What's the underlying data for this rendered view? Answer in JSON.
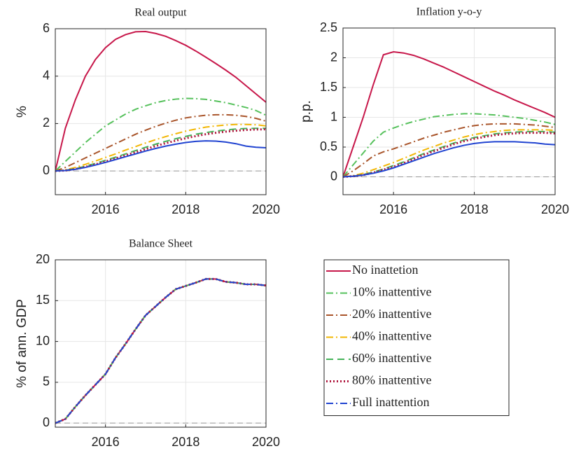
{
  "chart_data": [
    {
      "type": "line",
      "title": "Real output",
      "ylabel": "%",
      "xlim": [
        2014.75,
        2020
      ],
      "xticks": [
        2016,
        2018,
        2020
      ],
      "ylim": [
        -1,
        6
      ],
      "yticks": [
        0,
        2,
        4,
        6
      ],
      "grid": true,
      "hline": 0,
      "x": [
        2014.75,
        2015,
        2015.25,
        2015.5,
        2015.75,
        2016,
        2016.25,
        2016.5,
        2016.75,
        2017,
        2017.25,
        2017.5,
        2017.75,
        2018,
        2018.25,
        2018.5,
        2018.75,
        2019,
        2019.25,
        2019.5,
        2019.75,
        2020
      ],
      "series": [
        {
          "name": "No inattetion",
          "color": "#c7174a",
          "dash": "solid",
          "values": [
            0,
            1.8,
            3.0,
            4.0,
            4.7,
            5.2,
            5.55,
            5.75,
            5.87,
            5.88,
            5.8,
            5.68,
            5.5,
            5.3,
            5.06,
            4.8,
            4.53,
            4.25,
            3.95,
            3.6,
            3.25,
            2.9
          ]
        },
        {
          "name": "10% inattentive",
          "color": "#56c15c",
          "dash": "dashdot",
          "values": [
            0,
            0.4,
            0.8,
            1.2,
            1.55,
            1.9,
            2.15,
            2.4,
            2.6,
            2.75,
            2.88,
            2.97,
            3.03,
            3.06,
            3.05,
            3.02,
            2.95,
            2.88,
            2.78,
            2.68,
            2.55,
            2.35
          ]
        },
        {
          "name": "20% inattentive",
          "color": "#a9552b",
          "dash": "dashdot",
          "values": [
            0,
            0.15,
            0.35,
            0.55,
            0.75,
            0.95,
            1.15,
            1.35,
            1.55,
            1.72,
            1.88,
            2.02,
            2.14,
            2.24,
            2.3,
            2.35,
            2.37,
            2.37,
            2.35,
            2.3,
            2.22,
            2.1
          ]
        },
        {
          "name": "40% inattentive",
          "color": "#f2b705",
          "dash": "dashdot",
          "values": [
            0,
            0.05,
            0.15,
            0.28,
            0.42,
            0.57,
            0.72,
            0.88,
            1.03,
            1.18,
            1.32,
            1.45,
            1.57,
            1.68,
            1.77,
            1.85,
            1.9,
            1.94,
            1.96,
            1.96,
            1.95,
            1.9
          ]
        },
        {
          "name": "60% inattentive",
          "color": "#45b35a",
          "dash": "dashed",
          "values": [
            0,
            0.03,
            0.1,
            0.2,
            0.32,
            0.45,
            0.58,
            0.72,
            0.86,
            1.0,
            1.13,
            1.25,
            1.36,
            1.46,
            1.55,
            1.62,
            1.68,
            1.73,
            1.77,
            1.79,
            1.8,
            1.8
          ]
        },
        {
          "name": "80% inattentive",
          "color": "#b0173e",
          "dash": "dotted",
          "values": [
            0,
            0.02,
            0.08,
            0.17,
            0.28,
            0.4,
            0.53,
            0.66,
            0.79,
            0.92,
            1.05,
            1.17,
            1.28,
            1.38,
            1.47,
            1.55,
            1.61,
            1.66,
            1.7,
            1.73,
            1.75,
            1.76
          ]
        },
        {
          "name": "Full inattention",
          "color": "#2144d1",
          "dash": "solid",
          "values": [
            0,
            0.02,
            0.07,
            0.15,
            0.25,
            0.36,
            0.48,
            0.6,
            0.72,
            0.84,
            0.95,
            1.05,
            1.13,
            1.2,
            1.25,
            1.27,
            1.26,
            1.22,
            1.15,
            1.05,
            1.0,
            0.98
          ]
        }
      ]
    },
    {
      "type": "line",
      "title": "Inflation y-o-y",
      "ylabel": "p.p.",
      "xlim": [
        2014.75,
        2020
      ],
      "xticks": [
        2016,
        2018,
        2020
      ],
      "ylim": [
        -0.3,
        2.5
      ],
      "yticks": [
        0,
        0.5,
        1,
        1.5,
        2,
        2.5
      ],
      "grid": true,
      "hline": 0,
      "x": [
        2014.75,
        2015,
        2015.25,
        2015.5,
        2015.75,
        2016,
        2016.25,
        2016.5,
        2016.75,
        2017,
        2017.25,
        2017.5,
        2017.75,
        2018,
        2018.25,
        2018.5,
        2018.75,
        2019,
        2019.25,
        2019.5,
        2019.75,
        2020
      ],
      "series": [
        {
          "name": "No inattetion",
          "color": "#c7174a",
          "dash": "solid",
          "values": [
            0,
            0.5,
            1.0,
            1.55,
            2.05,
            2.1,
            2.08,
            2.04,
            1.98,
            1.91,
            1.84,
            1.76,
            1.68,
            1.6,
            1.52,
            1.44,
            1.37,
            1.29,
            1.22,
            1.15,
            1.08,
            1.0
          ]
        },
        {
          "name": "10% inattentive",
          "color": "#56c15c",
          "dash": "dashdot",
          "values": [
            0,
            0.2,
            0.4,
            0.6,
            0.75,
            0.82,
            0.88,
            0.93,
            0.97,
            1.01,
            1.03,
            1.05,
            1.06,
            1.06,
            1.05,
            1.04,
            1.02,
            1.0,
            0.98,
            0.95,
            0.92,
            0.88
          ]
        },
        {
          "name": "20% inattentive",
          "color": "#a9552b",
          "dash": "dashdot",
          "values": [
            0,
            0.1,
            0.22,
            0.35,
            0.42,
            0.47,
            0.53,
            0.59,
            0.65,
            0.7,
            0.75,
            0.79,
            0.83,
            0.86,
            0.88,
            0.89,
            0.89,
            0.89,
            0.88,
            0.87,
            0.85,
            0.83
          ]
        },
        {
          "name": "40% inattentive",
          "color": "#f2b705",
          "dash": "dashdot",
          "values": [
            0,
            0.02,
            0.06,
            0.12,
            0.18,
            0.24,
            0.31,
            0.38,
            0.45,
            0.51,
            0.57,
            0.62,
            0.67,
            0.71,
            0.74,
            0.76,
            0.78,
            0.79,
            0.79,
            0.79,
            0.79,
            0.78
          ]
        },
        {
          "name": "60% inattentive",
          "color": "#45b35a",
          "dash": "dashed",
          "values": [
            0,
            0.01,
            0.04,
            0.08,
            0.13,
            0.19,
            0.25,
            0.32,
            0.39,
            0.45,
            0.51,
            0.57,
            0.62,
            0.66,
            0.69,
            0.72,
            0.74,
            0.75,
            0.76,
            0.76,
            0.76,
            0.75
          ]
        },
        {
          "name": "80% inattentive",
          "color": "#b0173e",
          "dash": "dotted",
          "values": [
            0,
            0.01,
            0.03,
            0.07,
            0.12,
            0.17,
            0.23,
            0.3,
            0.37,
            0.43,
            0.49,
            0.55,
            0.6,
            0.64,
            0.67,
            0.7,
            0.72,
            0.73,
            0.74,
            0.74,
            0.74,
            0.73
          ]
        },
        {
          "name": "Full inattention",
          "color": "#2144d1",
          "dash": "solid",
          "values": [
            0,
            0.01,
            0.03,
            0.06,
            0.1,
            0.15,
            0.21,
            0.27,
            0.33,
            0.39,
            0.44,
            0.49,
            0.53,
            0.56,
            0.58,
            0.59,
            0.59,
            0.59,
            0.58,
            0.57,
            0.55,
            0.54
          ]
        }
      ]
    },
    {
      "type": "line",
      "title": "Balance Sheet",
      "ylabel": "% of ann. GDP",
      "xlim": [
        2014.75,
        2020
      ],
      "xticks": [
        2016,
        2018,
        2020
      ],
      "ylim": [
        -0.5,
        20
      ],
      "yticks": [
        0,
        5,
        10,
        15,
        20
      ],
      "grid": true,
      "hline": 0,
      "legend": "right",
      "x": [
        2014.75,
        2015,
        2015.25,
        2015.5,
        2015.75,
        2016,
        2016.25,
        2016.5,
        2016.75,
        2017,
        2017.25,
        2017.5,
        2017.75,
        2018,
        2018.25,
        2018.5,
        2018.75,
        2019,
        2019.25,
        2019.5,
        2019.75,
        2020
      ],
      "series": [
        {
          "name": "No inattetion",
          "color": "#c7174a",
          "dash": "solid",
          "values": [
            0,
            0.5,
            2.0,
            3.4,
            4.7,
            6.0,
            8.0,
            9.7,
            11.5,
            13.2,
            14.3,
            15.4,
            16.4,
            16.8,
            17.2,
            17.65,
            17.65,
            17.3,
            17.2,
            17.0,
            17.0,
            16.85
          ]
        },
        {
          "name": "10% inattentive",
          "color": "#56c15c",
          "dash": "dashdot",
          "values": [
            0,
            0.5,
            2.0,
            3.4,
            4.7,
            6.0,
            8.0,
            9.7,
            11.5,
            13.2,
            14.3,
            15.4,
            16.4,
            16.8,
            17.2,
            17.65,
            17.65,
            17.3,
            17.2,
            17.0,
            17.0,
            16.85
          ]
        },
        {
          "name": "20% inattentive",
          "color": "#a9552b",
          "dash": "dashdot",
          "values": [
            0,
            0.5,
            2.0,
            3.4,
            4.7,
            6.0,
            8.0,
            9.7,
            11.5,
            13.2,
            14.3,
            15.4,
            16.4,
            16.8,
            17.2,
            17.65,
            17.65,
            17.3,
            17.2,
            17.0,
            17.0,
            16.85
          ]
        },
        {
          "name": "40% inattentive",
          "color": "#f2b705",
          "dash": "dashdot",
          "values": [
            0,
            0.5,
            2.0,
            3.4,
            4.7,
            6.0,
            8.0,
            9.7,
            11.5,
            13.2,
            14.3,
            15.4,
            16.4,
            16.8,
            17.2,
            17.65,
            17.65,
            17.3,
            17.2,
            17.0,
            17.0,
            16.85
          ]
        },
        {
          "name": "60% inattentive",
          "color": "#45b35a",
          "dash": "dashed",
          "values": [
            0,
            0.5,
            2.0,
            3.4,
            4.7,
            6.0,
            8.0,
            9.7,
            11.5,
            13.2,
            14.3,
            15.4,
            16.4,
            16.8,
            17.2,
            17.65,
            17.65,
            17.3,
            17.2,
            17.0,
            17.0,
            16.85
          ]
        },
        {
          "name": "80% inattentive",
          "color": "#b0173e",
          "dash": "dotted",
          "values": [
            0,
            0.5,
            2.0,
            3.4,
            4.7,
            6.0,
            8.0,
            9.7,
            11.5,
            13.2,
            14.3,
            15.4,
            16.4,
            16.8,
            17.2,
            17.65,
            17.65,
            17.3,
            17.2,
            17.0,
            17.0,
            16.85
          ]
        },
        {
          "name": "Full inattention",
          "color": "#2144d1",
          "dash": "dashdot",
          "values": [
            0,
            0.5,
            2.0,
            3.4,
            4.7,
            6.0,
            8.0,
            9.7,
            11.5,
            13.2,
            14.3,
            15.4,
            16.4,
            16.8,
            17.2,
            17.65,
            17.65,
            17.3,
            17.2,
            17.0,
            17.0,
            16.85
          ]
        }
      ]
    }
  ]
}
